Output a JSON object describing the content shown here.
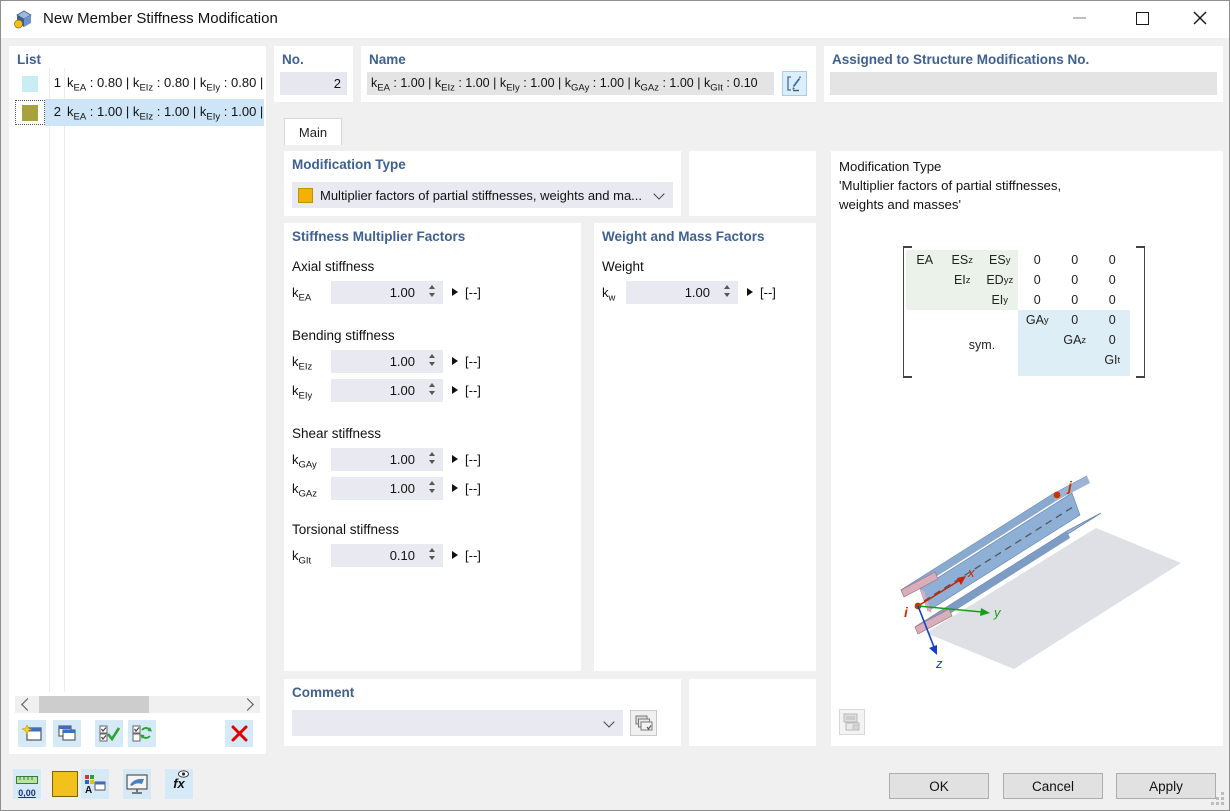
{
  "window": {
    "title": "New Member Stiffness Modification"
  },
  "colors": {
    "accent_header": "#3f6191",
    "selection": "#cde5f7",
    "item1_swatch": "#c9eef2",
    "item2_swatch": "#a6a23e",
    "type_swatch": "#f4b200",
    "bottom_color_swatch": "#f2c11c",
    "matrix_green": "#eaf2ea",
    "matrix_blue": "#ddeef7"
  },
  "list_panel": {
    "header": "List",
    "items": [
      {
        "num": "1",
        "text": "k_{EA} : 0.80 | k_{EIz} : 0.80 | k_{EIy} : 0.80 | k",
        "swatch": "#c9eef2"
      },
      {
        "num": "2",
        "text": "k_{EA} : 1.00 | k_{EIz} : 1.00 | k_{EIy} : 1.00 | k",
        "swatch": "#a6a23e"
      }
    ]
  },
  "fields": {
    "no_label": "No.",
    "no_value": "2",
    "name_label": "Name",
    "name_value": "k_{EA} : 1.00 | k_{EIz} : 1.00 | k_{EIy} : 1.00 | k_{GAy} : 1.00 | k_{GAz} : 1.00 | k_{GIt} : 0.10",
    "assigned_label": "Assigned to Structure Modifications No.",
    "assigned_value": ""
  },
  "tab": {
    "label": "Main"
  },
  "modification_type": {
    "header": "Modification Type",
    "selected": "Multiplier factors of partial stiffnesses, weights and ma..."
  },
  "stiffness": {
    "header": "Stiffness Multiplier Factors",
    "groups": {
      "axial": "Axial stiffness",
      "bending": "Bending stiffness",
      "shear": "Shear stiffness",
      "torsional": "Torsional stiffness"
    },
    "factors": {
      "kea": {
        "base": "k",
        "sub": "EA",
        "value": "1.00",
        "unit": "[--]"
      },
      "keiz": {
        "base": "k",
        "sub": "EIz",
        "value": "1.00",
        "unit": "[--]"
      },
      "keiy": {
        "base": "k",
        "sub": "EIy",
        "value": "1.00",
        "unit": "[--]"
      },
      "kgay": {
        "base": "k",
        "sub": "GAy",
        "value": "1.00",
        "unit": "[--]"
      },
      "kgaz": {
        "base": "k",
        "sub": "GAz",
        "value": "1.00",
        "unit": "[--]"
      },
      "kgit": {
        "base": "k",
        "sub": "GIt",
        "value": "0.10",
        "unit": "[--]"
      }
    }
  },
  "weight": {
    "header": "Weight and Mass Factors",
    "group_label": "Weight",
    "factor": {
      "base": "k",
      "sub": "w",
      "value": "1.00",
      "unit": "[--]"
    }
  },
  "comment": {
    "header": "Comment",
    "value": ""
  },
  "info": {
    "line1": "Modification Type",
    "line2": "'Multiplier factors of partial stiffnesses,",
    "line3": "weights and masses'",
    "matrix": {
      "sym": "sym.",
      "cells": [
        [
          "EA",
          "ES_{z}",
          "ES_{y}",
          "0",
          "0",
          "0"
        ],
        [
          "",
          "EI_{z}",
          "ED_{yz}",
          "0",
          "0",
          "0"
        ],
        [
          "",
          "",
          "EI_{y}",
          "0",
          "0",
          "0"
        ],
        [
          "",
          "",
          "",
          "GA_{y}",
          "0",
          "0"
        ],
        [
          "",
          "",
          "",
          "",
          "GA_{z}",
          "0"
        ],
        [
          "",
          "",
          "",
          "",
          "",
          "GI_{t}"
        ]
      ]
    },
    "beam": {
      "node_i": "i",
      "node_j": "j",
      "axis_x": "x",
      "axis_y": "y",
      "axis_z": "z"
    }
  },
  "buttons": {
    "ok": "OK",
    "cancel": "Cancel",
    "apply": "Apply"
  },
  "bottom_toolbar": {
    "decimal_label": "0,00",
    "font_letter": "A",
    "fx_label": "fx"
  }
}
